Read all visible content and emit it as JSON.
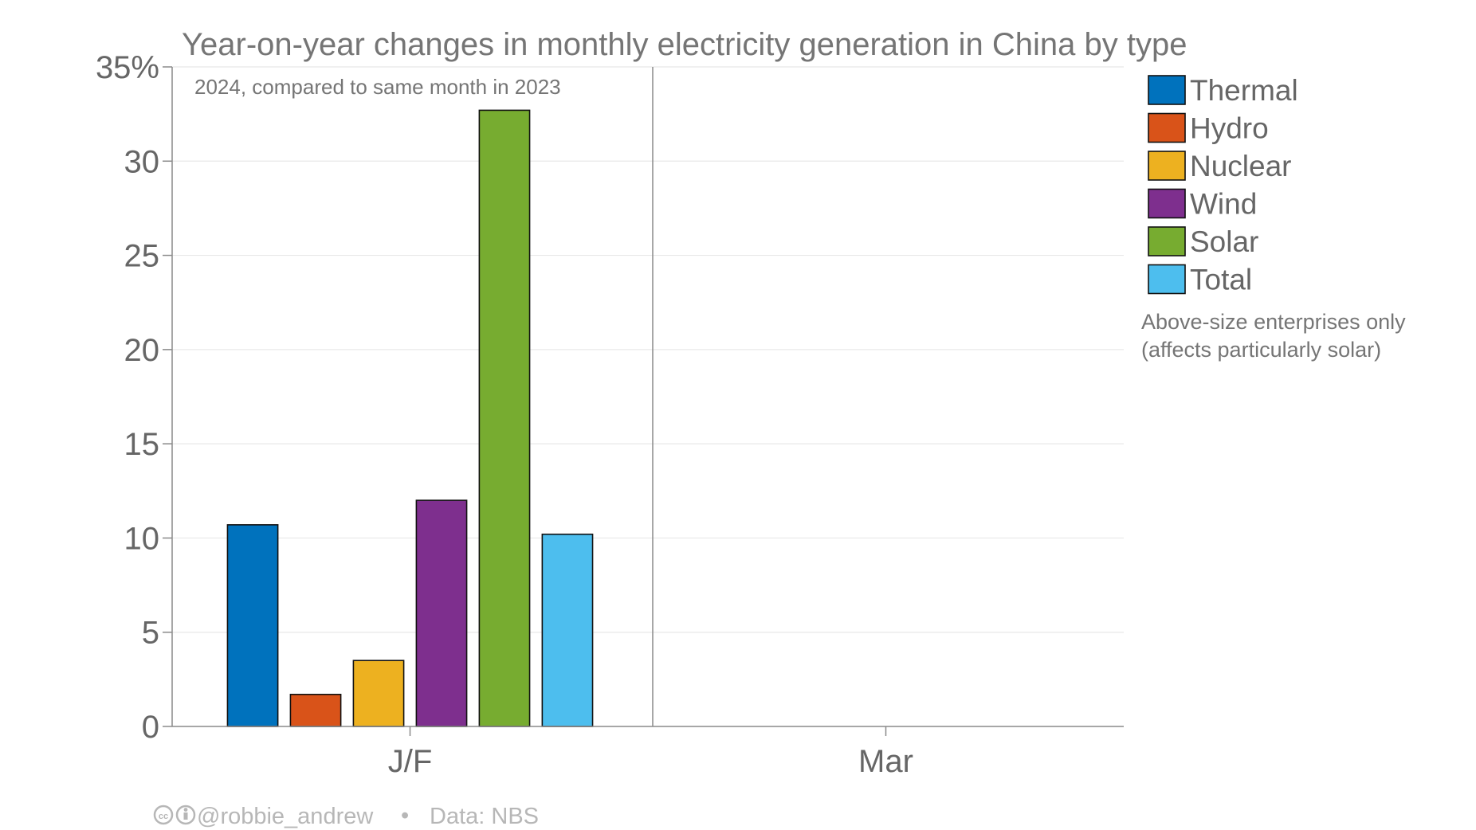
{
  "chart_data": {
    "type": "bar",
    "title": "Year-on-year changes in monthly electricity generation in China by type",
    "subtitle": "2024, compared to same month in 2023",
    "ylabel": "",
    "xlabel": "",
    "y_unit_label": "35%",
    "ylim": [
      0,
      35
    ],
    "yticks": [
      0,
      5,
      10,
      15,
      20,
      25,
      30,
      35
    ],
    "ytick_labels": [
      "0",
      "5",
      "10",
      "15",
      "20",
      "25",
      "30",
      "35%"
    ],
    "categories": [
      "J/F",
      "Mar"
    ],
    "series": [
      {
        "name": "Thermal",
        "color": "#0072bd",
        "values": [
          10.7,
          null
        ]
      },
      {
        "name": "Hydro",
        "color": "#d95319",
        "values": [
          1.7,
          null
        ]
      },
      {
        "name": "Nuclear",
        "color": "#edb120",
        "values": [
          3.5,
          null
        ]
      },
      {
        "name": "Wind",
        "color": "#7e2f8e",
        "values": [
          12.0,
          null
        ]
      },
      {
        "name": "Solar",
        "color": "#77ac30",
        "values": [
          32.7,
          null
        ]
      },
      {
        "name": "Total",
        "color": "#4dbeee",
        "values": [
          10.2,
          null
        ]
      }
    ],
    "grid": true,
    "legend_position": "right",
    "note": [
      "Above-size enterprises only",
      "(affects particularly solar)"
    ],
    "footer": {
      "handle": "@robbie_andrew",
      "separator": "•",
      "source": "Data: NBS"
    }
  }
}
